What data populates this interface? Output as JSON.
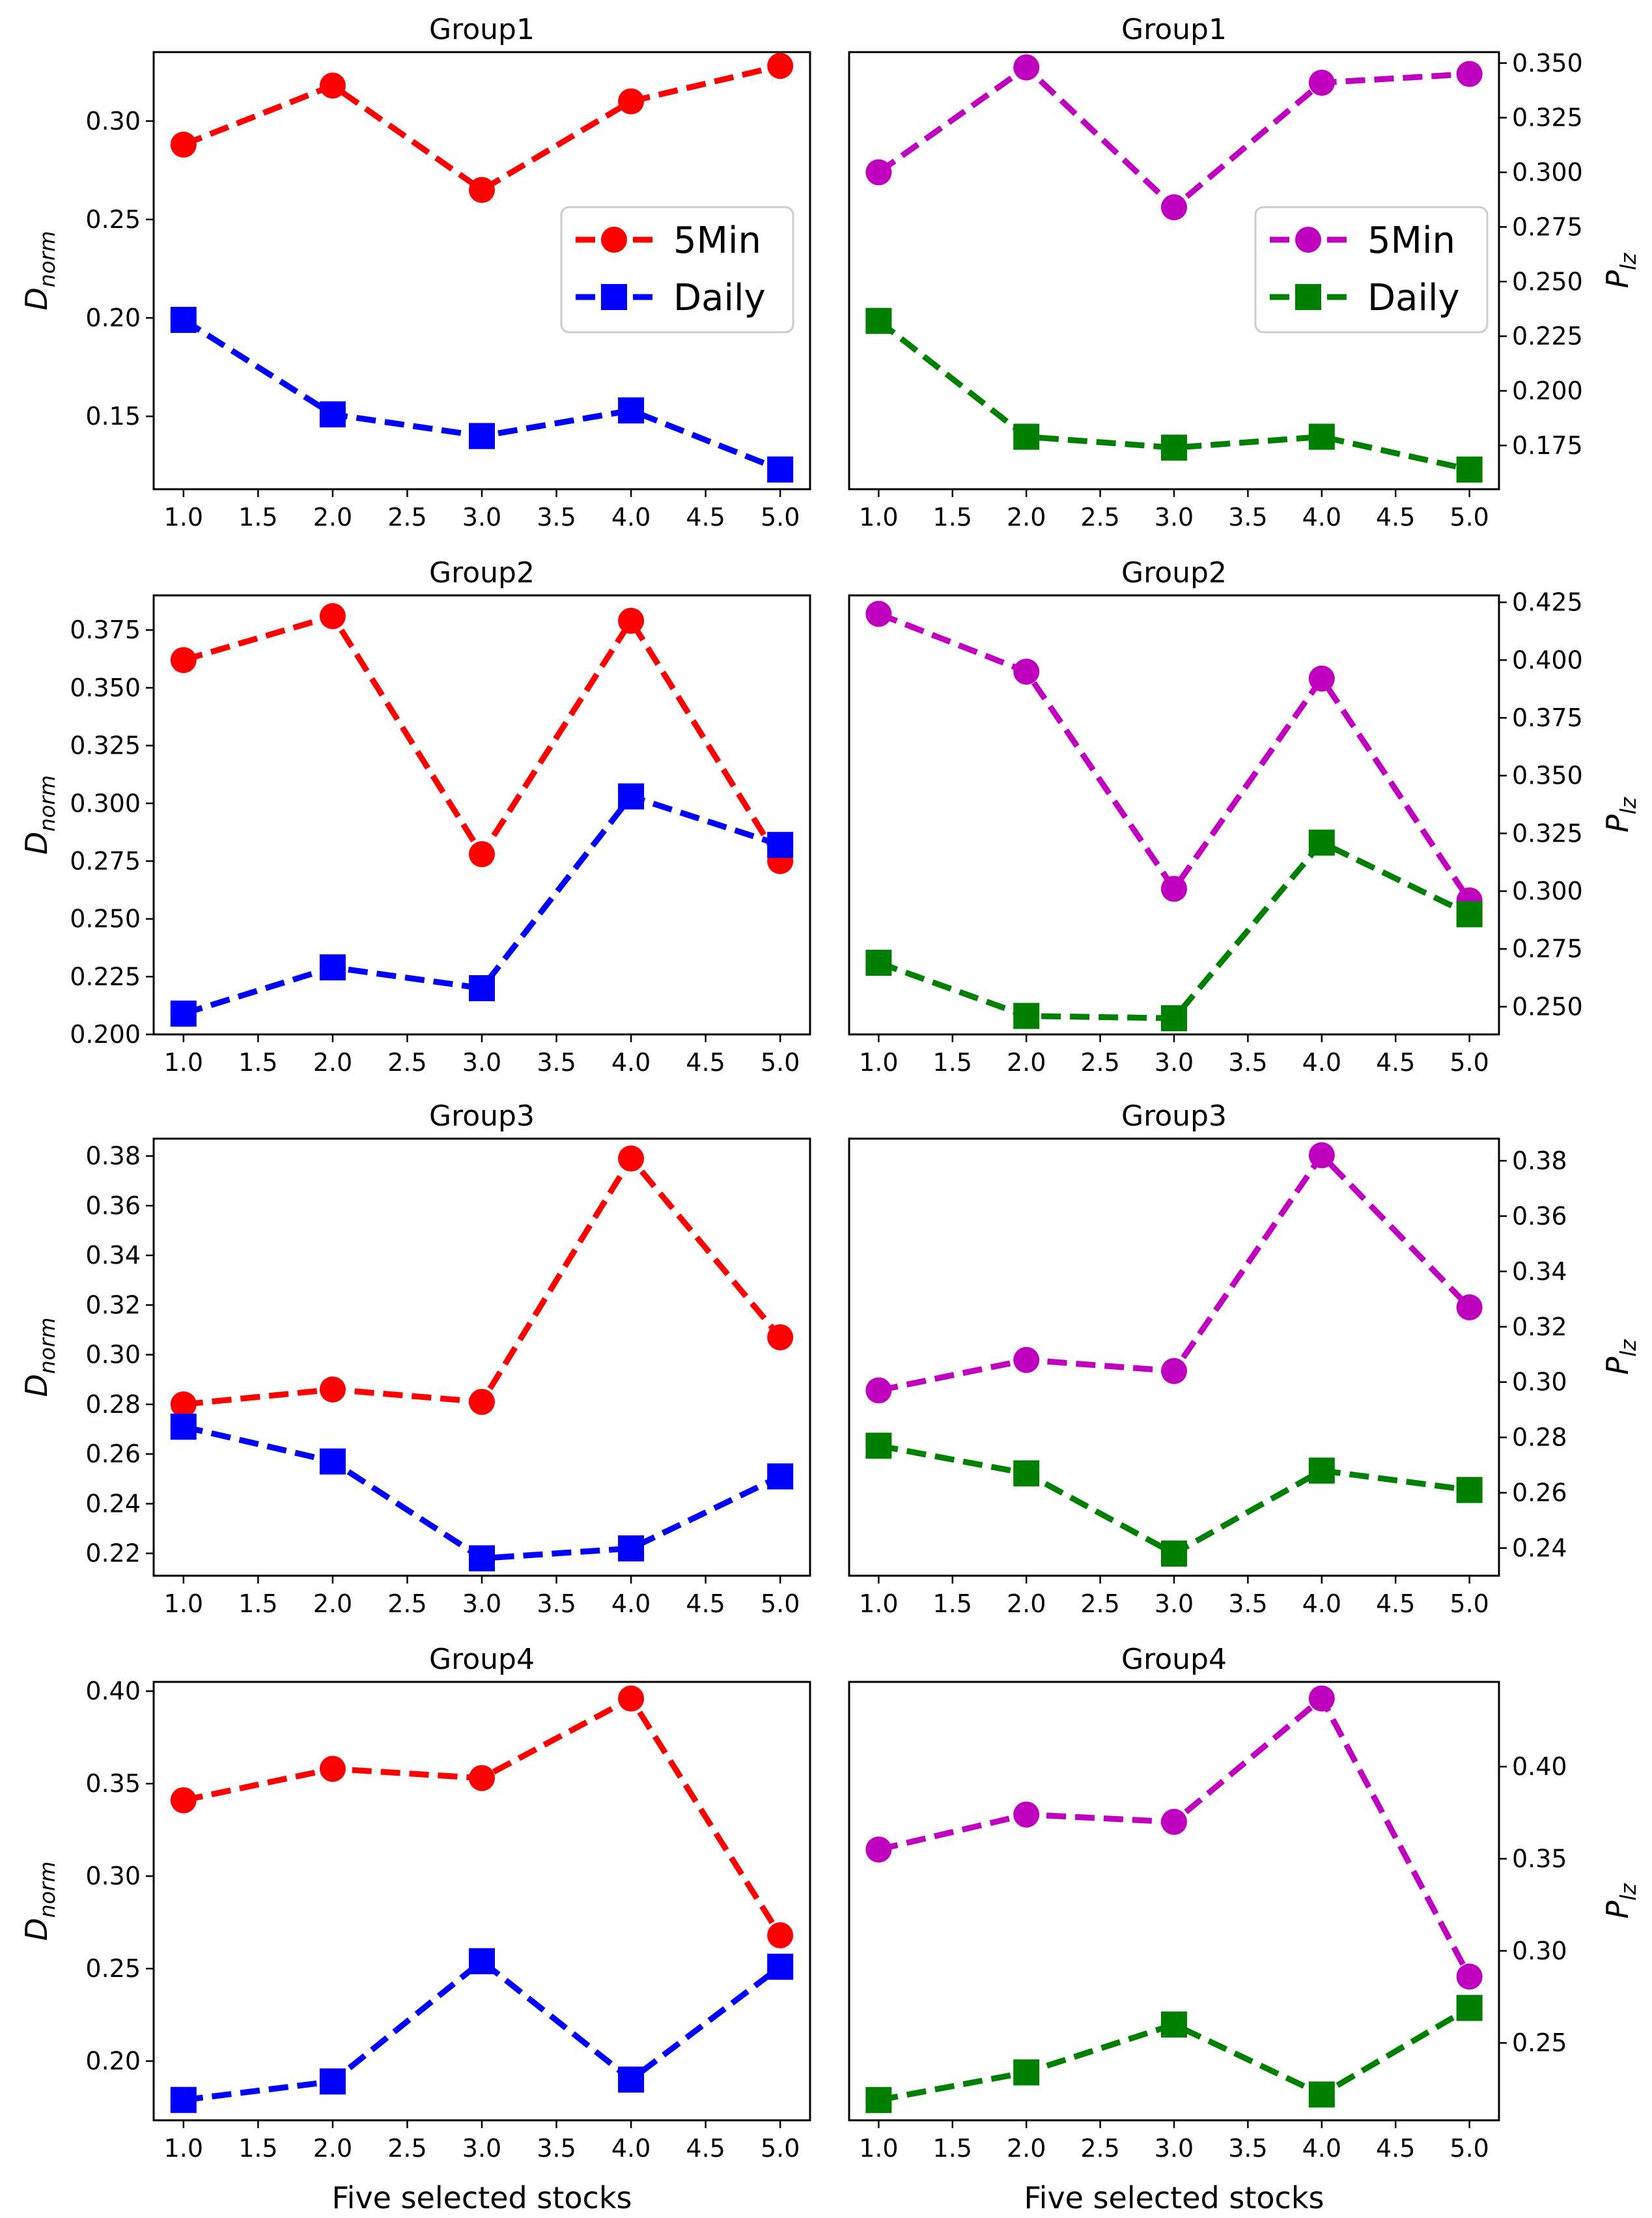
{
  "figure": {
    "xlabel": "Five selected stocks",
    "legend_labels": [
      "5Min",
      "Daily"
    ]
  },
  "colors": {
    "left_5min": "#ff0000",
    "left_daily": "#0000ff",
    "right_5min": "#bf00bf",
    "right_daily": "#008000"
  },
  "chart_data": [
    {
      "type": "line",
      "title": "Group1",
      "ylabel_main": "D",
      "ylabel_sub": "norm",
      "x": [
        1,
        2,
        3,
        4,
        5
      ],
      "xticks": [
        "1.0",
        "1.5",
        "2.0",
        "2.5",
        "3.0",
        "3.5",
        "4.0",
        "4.5",
        "5.0"
      ],
      "xlim": [
        0.8,
        5.2
      ],
      "ylim": [
        0.113,
        0.335
      ],
      "yticks": [
        0.15,
        0.2,
        0.25,
        0.3
      ],
      "ytick_labels": [
        "0.15",
        "0.20",
        "0.25",
        "0.30"
      ],
      "legend": true,
      "series": [
        {
          "name": "5Min",
          "marker": "circle",
          "color": "#ff0000",
          "values": [
            0.288,
            0.318,
            0.265,
            0.31,
            0.328
          ]
        },
        {
          "name": "Daily",
          "marker": "square",
          "color": "#0000ff",
          "values": [
            0.199,
            0.151,
            0.14,
            0.153,
            0.123
          ]
        }
      ]
    },
    {
      "type": "line",
      "title": "Group1",
      "ylabel_main": "P",
      "ylabel_sub": "lz",
      "x": [
        1,
        2,
        3,
        4,
        5
      ],
      "xticks": [
        "1.0",
        "1.5",
        "2.0",
        "2.5",
        "3.0",
        "3.5",
        "4.0",
        "4.5",
        "5.0"
      ],
      "xlim": [
        0.8,
        5.2
      ],
      "ylim": [
        0.155,
        0.355
      ],
      "yticks": [
        0.175,
        0.2,
        0.225,
        0.25,
        0.275,
        0.3,
        0.325,
        0.35
      ],
      "ytick_labels": [
        "0.175",
        "0.200",
        "0.225",
        "0.250",
        "0.275",
        "0.300",
        "0.325",
        "0.350"
      ],
      "legend": true,
      "series": [
        {
          "name": "5Min",
          "marker": "circle",
          "color": "#bf00bf",
          "values": [
            0.3,
            0.348,
            0.284,
            0.341,
            0.345
          ]
        },
        {
          "name": "Daily",
          "marker": "square",
          "color": "#008000",
          "values": [
            0.232,
            0.179,
            0.174,
            0.179,
            0.164
          ]
        }
      ]
    },
    {
      "type": "line",
      "title": "Group2",
      "ylabel_main": "D",
      "ylabel_sub": "norm",
      "x": [
        1,
        2,
        3,
        4,
        5
      ],
      "xticks": [
        "1.0",
        "1.5",
        "2.0",
        "2.5",
        "3.0",
        "3.5",
        "4.0",
        "4.5",
        "5.0"
      ],
      "xlim": [
        0.8,
        5.2
      ],
      "ylim": [
        0.2,
        0.39
      ],
      "yticks": [
        0.2,
        0.225,
        0.25,
        0.275,
        0.3,
        0.325,
        0.35,
        0.375
      ],
      "ytick_labels": [
        "0.200",
        "0.225",
        "0.250",
        "0.275",
        "0.300",
        "0.325",
        "0.350",
        "0.375"
      ],
      "legend": false,
      "series": [
        {
          "name": "5Min",
          "marker": "circle",
          "color": "#ff0000",
          "values": [
            0.362,
            0.381,
            0.278,
            0.379,
            0.275
          ]
        },
        {
          "name": "Daily",
          "marker": "square",
          "color": "#0000ff",
          "values": [
            0.209,
            0.229,
            0.22,
            0.303,
            0.282
          ]
        }
      ]
    },
    {
      "type": "line",
      "title": "Group2",
      "ylabel_main": "P",
      "ylabel_sub": "lz",
      "x": [
        1,
        2,
        3,
        4,
        5
      ],
      "xticks": [
        "1.0",
        "1.5",
        "2.0",
        "2.5",
        "3.0",
        "3.5",
        "4.0",
        "4.5",
        "5.0"
      ],
      "xlim": [
        0.8,
        5.2
      ],
      "ylim": [
        0.238,
        0.428
      ],
      "yticks": [
        0.25,
        0.275,
        0.3,
        0.325,
        0.35,
        0.375,
        0.4,
        0.425
      ],
      "ytick_labels": [
        "0.250",
        "0.275",
        "0.300",
        "0.325",
        "0.350",
        "0.375",
        "0.400",
        "0.425"
      ],
      "legend": false,
      "series": [
        {
          "name": "5Min",
          "marker": "circle",
          "color": "#bf00bf",
          "values": [
            0.42,
            0.395,
            0.301,
            0.392,
            0.296
          ]
        },
        {
          "name": "Daily",
          "marker": "square",
          "color": "#008000",
          "values": [
            0.269,
            0.246,
            0.245,
            0.321,
            0.29
          ]
        }
      ]
    },
    {
      "type": "line",
      "title": "Group3",
      "ylabel_main": "D",
      "ylabel_sub": "norm",
      "x": [
        1,
        2,
        3,
        4,
        5
      ],
      "xticks": [
        "1.0",
        "1.5",
        "2.0",
        "2.5",
        "3.0",
        "3.5",
        "4.0",
        "4.5",
        "5.0"
      ],
      "xlim": [
        0.8,
        5.2
      ],
      "ylim": [
        0.211,
        0.387
      ],
      "yticks": [
        0.22,
        0.24,
        0.26,
        0.28,
        0.3,
        0.32,
        0.34,
        0.36,
        0.38
      ],
      "ytick_labels": [
        "0.22",
        "0.24",
        "0.26",
        "0.28",
        "0.30",
        "0.32",
        "0.34",
        "0.36",
        "0.38"
      ],
      "legend": false,
      "series": [
        {
          "name": "5Min",
          "marker": "circle",
          "color": "#ff0000",
          "values": [
            0.28,
            0.286,
            0.281,
            0.379,
            0.307
          ]
        },
        {
          "name": "Daily",
          "marker": "square",
          "color": "#0000ff",
          "values": [
            0.271,
            0.257,
            0.218,
            0.222,
            0.251
          ]
        }
      ]
    },
    {
      "type": "line",
      "title": "Group3",
      "ylabel_main": "P",
      "ylabel_sub": "lz",
      "x": [
        1,
        2,
        3,
        4,
        5
      ],
      "xticks": [
        "1.0",
        "1.5",
        "2.0",
        "2.5",
        "3.0",
        "3.5",
        "4.0",
        "4.5",
        "5.0"
      ],
      "xlim": [
        0.8,
        5.2
      ],
      "ylim": [
        0.23,
        0.388
      ],
      "yticks": [
        0.24,
        0.26,
        0.28,
        0.3,
        0.32,
        0.34,
        0.36,
        0.38
      ],
      "ytick_labels": [
        "0.24",
        "0.26",
        "0.28",
        "0.30",
        "0.32",
        "0.34",
        "0.36",
        "0.38"
      ],
      "legend": false,
      "series": [
        {
          "name": "5Min",
          "marker": "circle",
          "color": "#bf00bf",
          "values": [
            0.297,
            0.308,
            0.304,
            0.382,
            0.327
          ]
        },
        {
          "name": "Daily",
          "marker": "square",
          "color": "#008000",
          "values": [
            0.277,
            0.267,
            0.238,
            0.268,
            0.261
          ]
        }
      ]
    },
    {
      "type": "line",
      "title": "Group4",
      "ylabel_main": "D",
      "ylabel_sub": "norm",
      "x": [
        1,
        2,
        3,
        4,
        5
      ],
      "xticks": [
        "1.0",
        "1.5",
        "2.0",
        "2.5",
        "3.0",
        "3.5",
        "4.0",
        "4.5",
        "5.0"
      ],
      "xlim": [
        0.8,
        5.2
      ],
      "ylim": [
        0.168,
        0.405
      ],
      "yticks": [
        0.2,
        0.25,
        0.3,
        0.35,
        0.4
      ],
      "ytick_labels": [
        "0.20",
        "0.25",
        "0.30",
        "0.35",
        "0.40"
      ],
      "legend": false,
      "series": [
        {
          "name": "5Min",
          "marker": "circle",
          "color": "#ff0000",
          "values": [
            0.341,
            0.358,
            0.353,
            0.396,
            0.268
          ]
        },
        {
          "name": "Daily",
          "marker": "square",
          "color": "#0000ff",
          "values": [
            0.179,
            0.189,
            0.254,
            0.19,
            0.251
          ]
        }
      ]
    },
    {
      "type": "line",
      "title": "Group4",
      "ylabel_main": "P",
      "ylabel_sub": "lz",
      "x": [
        1,
        2,
        3,
        4,
        5
      ],
      "xticks": [
        "1.0",
        "1.5",
        "2.0",
        "2.5",
        "3.0",
        "3.5",
        "4.0",
        "4.5",
        "5.0"
      ],
      "xlim": [
        0.8,
        5.2
      ],
      "ylim": [
        0.208,
        0.446
      ],
      "yticks": [
        0.25,
        0.3,
        0.35,
        0.4
      ],
      "ytick_labels": [
        "0.25",
        "0.30",
        "0.35",
        "0.40"
      ],
      "legend": false,
      "series": [
        {
          "name": "5Min",
          "marker": "circle",
          "color": "#bf00bf",
          "values": [
            0.355,
            0.374,
            0.37,
            0.437,
            0.286
          ]
        },
        {
          "name": "Daily",
          "marker": "square",
          "color": "#008000",
          "values": [
            0.219,
            0.234,
            0.26,
            0.222,
            0.269
          ]
        }
      ]
    }
  ]
}
